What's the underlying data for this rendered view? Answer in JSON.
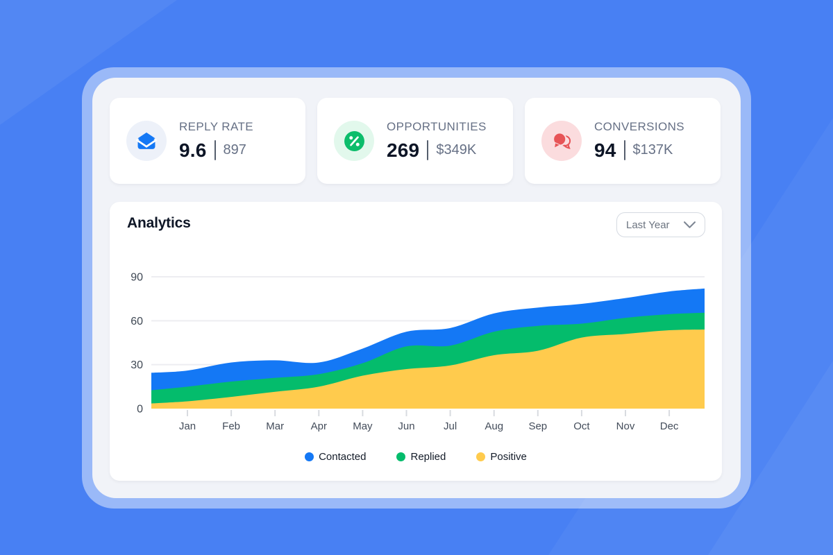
{
  "stats": [
    {
      "label": "REPLY RATE",
      "value": "9.6",
      "secondary": "897",
      "icon": "envelope-icon",
      "accent_color": "#1478f5",
      "icon_bg": "#edf1f9"
    },
    {
      "label": "OPPORTUNITIES",
      "value": "269",
      "secondary": "$349K",
      "icon": "percent-icon",
      "accent_color": "#0cbd6b",
      "icon_bg": "#e2f8ec"
    },
    {
      "label": "CONVERSIONS",
      "value": "94",
      "secondary": "$137K",
      "icon": "chat-bubbles-icon",
      "accent_color": "#e75457",
      "icon_bg": "#fbdcde"
    }
  ],
  "analytics": {
    "title": "Analytics",
    "filter": {
      "label": "Last Year",
      "icon": "chevron-down-icon"
    }
  },
  "chart_data": {
    "type": "area",
    "stacked": true,
    "title": "Analytics",
    "categories": [
      "Jan",
      "Feb",
      "Mar",
      "Apr",
      "May",
      "Jun",
      "Jul",
      "Aug",
      "Sep",
      "Oct",
      "Nov",
      "Dec"
    ],
    "y_ticks": [
      0,
      30,
      60,
      90
    ],
    "ylim": [
      0,
      90
    ],
    "grid": "horizontal",
    "legend_position": "bottom",
    "note": "values are per-series stacked contributions; edge_start/edge_end are the curve values at the plot edges just before Jan and after Dec",
    "series": [
      {
        "name": "Contacted",
        "color": "#1478f5",
        "edge_start": 12,
        "edge_end": 16.5,
        "values": [
          11,
          13,
          12,
          8,
          10,
          10,
          12,
          12.5,
          12.5,
          13.5,
          13.5,
          15.5
        ]
      },
      {
        "name": "Replied",
        "color": "#04bc6c",
        "edge_start": 9,
        "edge_end": 11.5,
        "values": [
          10,
          10.5,
          9.5,
          8.5,
          8.5,
          15.5,
          13.5,
          16,
          17,
          9.5,
          11,
          11
        ]
      },
      {
        "name": "Positive",
        "color": "#ffcb4d",
        "edge_start": 3.5,
        "edge_end": 54,
        "values": [
          5,
          8,
          11.5,
          15,
          22.5,
          27,
          29.5,
          36.5,
          39.5,
          48.5,
          51,
          53.5
        ]
      }
    ]
  }
}
